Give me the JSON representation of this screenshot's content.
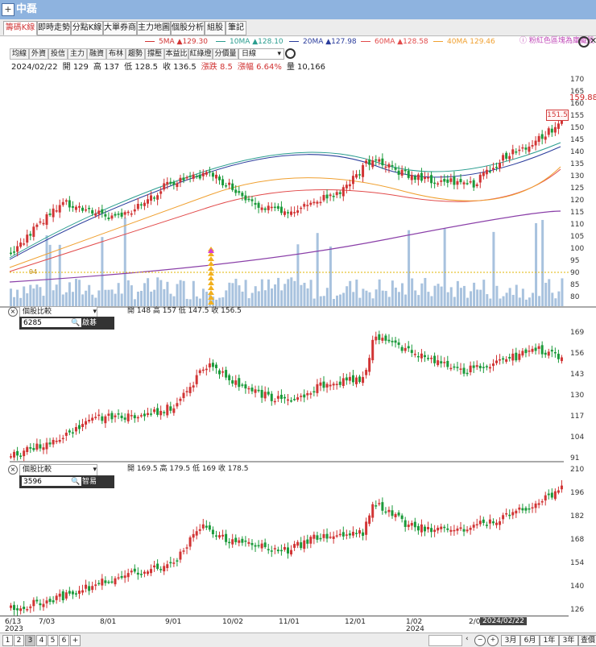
{
  "window": {
    "title": "中磊"
  },
  "tabs": [
    "籌碼K線",
    "即時走勢",
    "分點K線",
    "大單券商",
    "主力地圖",
    "個股分析",
    "組股",
    "筆記"
  ],
  "ma_legend": [
    {
      "label": "5MA",
      "value": "▲129.30",
      "color": "#d13434"
    },
    {
      "label": "10MA",
      "value": "▲128.10",
      "color": "#2a9d8f"
    },
    {
      "label": "20MA",
      "value": "▲127.98",
      "color": "#2a3c9c"
    },
    {
      "label": "60MA",
      "value": "▲128.58",
      "color": "#e24b4b"
    },
    {
      "label": "40MA",
      "value": "129.46",
      "color": "#f0a030"
    }
  ],
  "red_tip": "粉紅色區塊為庫藏股",
  "toolbar": [
    "均線",
    "外資",
    "投信",
    "主力",
    "融資",
    "布林",
    "趨勢",
    "撐壓",
    "本益比",
    "紅綠燈",
    "分價量"
  ],
  "period_select": "日線",
  "ohlc": {
    "date": "2024/02/22",
    "open": "開 129",
    "high": "高 137",
    "low": "低 128.5",
    "close": "收 136.5",
    "change": "漲跌 8.5",
    "pct": "漲幅 6.64%",
    "vol": "量 10,166"
  },
  "main_axis": [
    "170",
    "165",
    "160",
    "155",
    "150",
    "145",
    "140",
    "135",
    "130",
    "125",
    "120",
    "115",
    "110",
    "105",
    "100",
    "95",
    "90",
    "85",
    "80"
  ],
  "last_price": "159.88",
  "flag_price": "151.5",
  "level_line": "94",
  "panel2": {
    "label": "個股比較",
    "code": "6285",
    "name": "啟碁",
    "ohlc": "開 148  高 157  低 147.5  收 156.5",
    "axis": [
      "169",
      "156",
      "143",
      "130",
      "117",
      "104",
      "91"
    ]
  },
  "panel3": {
    "label": "個股比較",
    "code": "3596",
    "name": "智易",
    "ohlc": "開 169.5  高 179.5  低 169  收 178.5",
    "axis": [
      "210",
      "196",
      "182",
      "168",
      "154",
      "140",
      "126"
    ]
  },
  "x_axis": [
    "6/13",
    "7/03",
    "8/01",
    "9/01",
    "10/02",
    "11/01",
    "12/01",
    "1/02",
    "2/0"
  ],
  "x_years": {
    "start": "2023",
    "mid": "2024"
  },
  "cursor_date": "2024/02/22",
  "pages": [
    "1",
    "2",
    "3",
    "4",
    "5",
    "6"
  ],
  "range_buttons": [
    "3月",
    "6月",
    "1年",
    "3年",
    "查價"
  ],
  "colors": {
    "up": "#d13434",
    "down": "#1a9a3a",
    "volume": "#a8c2de",
    "purple": "#8a3fa8"
  }
}
